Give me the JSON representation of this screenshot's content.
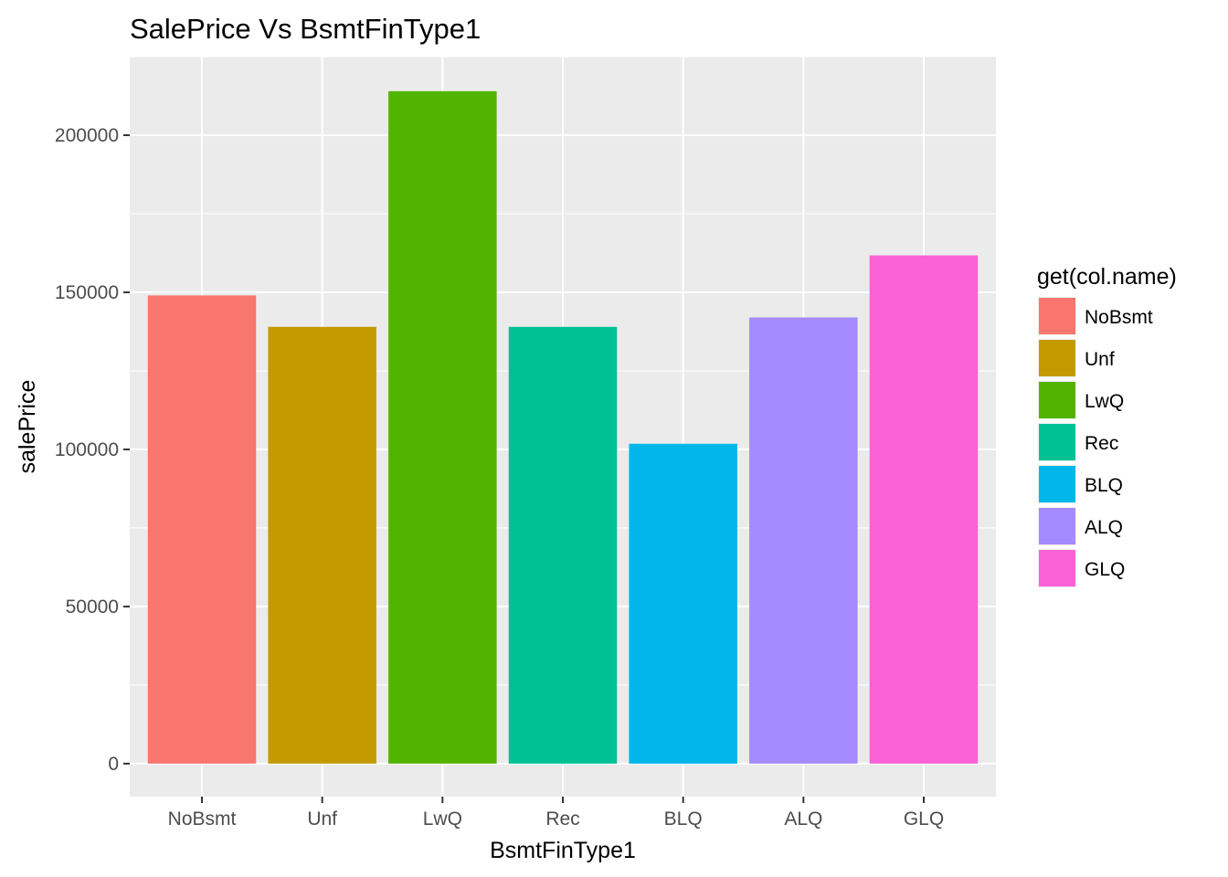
{
  "chart_data": {
    "type": "bar",
    "title": "SalePrice Vs BsmtFinType1",
    "xlabel": "BsmtFinType1",
    "ylabel": "salePrice",
    "categories": [
      "NoBsmt",
      "Unf",
      "LwQ",
      "Rec",
      "BLQ",
      "ALQ",
      "GLQ"
    ],
    "values": [
      149000,
      139000,
      214000,
      139000,
      101800,
      142000,
      161750
    ],
    "colors": [
      "#F8766D",
      "#C49A00",
      "#53B400",
      "#00C094",
      "#00B6EB",
      "#A58AFF",
      "#FB61D7"
    ],
    "ylim": [
      -10500,
      225000
    ],
    "yticks": [
      0,
      50000,
      100000,
      150000,
      200000
    ],
    "ytick_labels": [
      "0",
      "50000",
      "100000",
      "150000",
      "200000"
    ],
    "grid": true,
    "panel_background": "#EBEBEB",
    "grid_color": "#FFFFFF",
    "legend": {
      "title": "get(col.name)",
      "position": "right",
      "entries": [
        "NoBsmt",
        "Unf",
        "LwQ",
        "Rec",
        "BLQ",
        "ALQ",
        "GLQ"
      ]
    }
  }
}
